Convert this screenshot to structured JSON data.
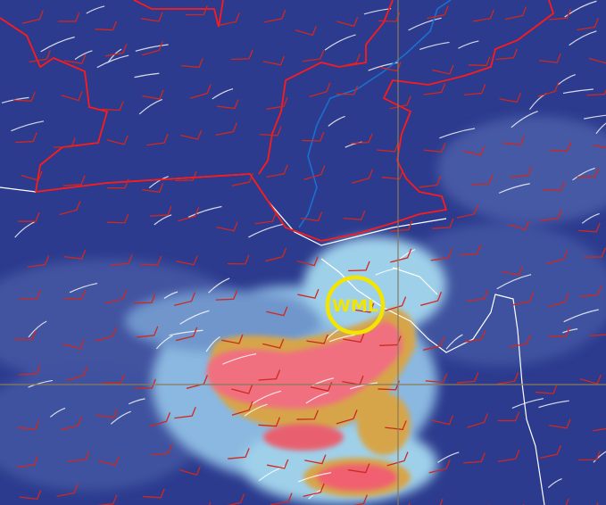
{
  "marker": {
    "label": "WML",
    "color": "#f4e500"
  },
  "colors": {
    "background": "#2c3b8e",
    "border": "#ff1a1a",
    "river": "#1a6fd0",
    "coastline": "#ffffff",
    "wind_barb": "#d0281e",
    "crosshair": "#8a7a5a",
    "cloud_cold": "#a8d8ee",
    "cloud_warm": "#d8a040",
    "cloud_core": "#f06070"
  }
}
